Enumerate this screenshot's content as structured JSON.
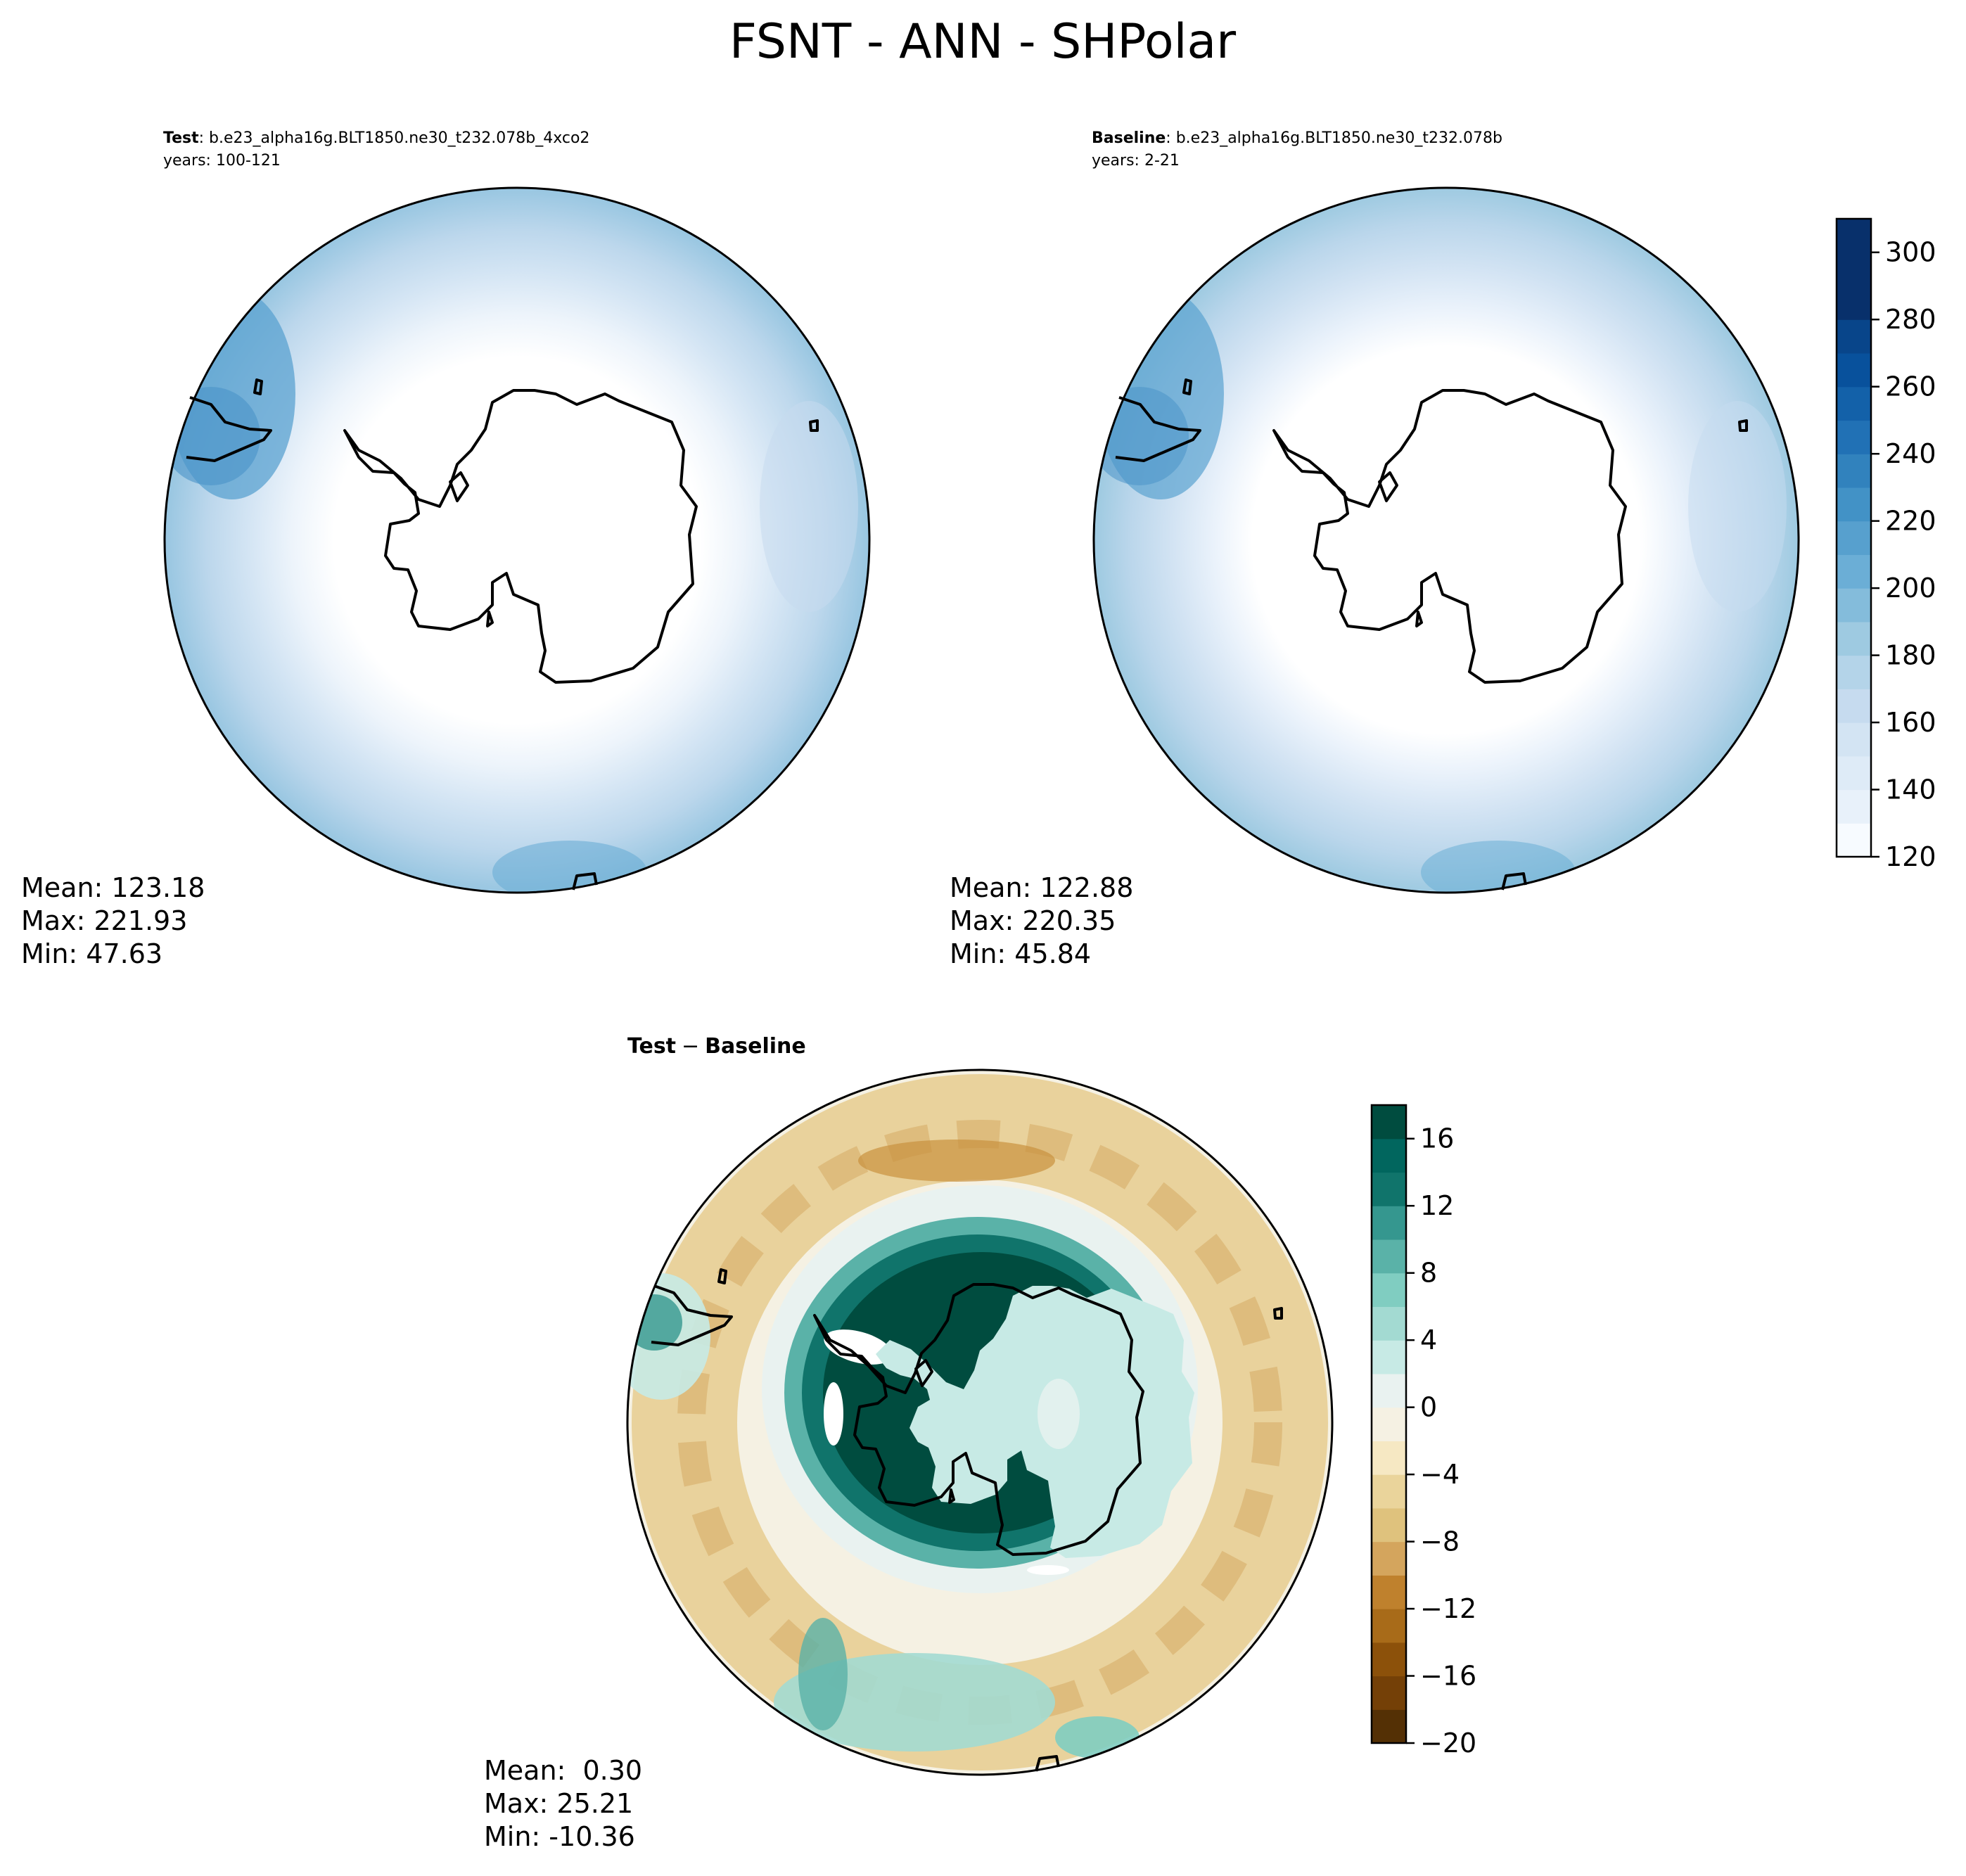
{
  "title": "FSNT - ANN - SHPolar",
  "colors": {
    "blues": [
      "#f7fbff",
      "#e8f1fa",
      "#deebf7",
      "#d3e4f3",
      "#c6dbef",
      "#b4d4e9",
      "#9ecae1",
      "#84bcdb",
      "#6baed6",
      "#57a0ce",
      "#4292c6",
      "#3182bd",
      "#2171b5",
      "#1361a9",
      "#08519c",
      "#08458a",
      "#08306b"
    ],
    "brbg": [
      "#543005",
      "#744007",
      "#8c510a",
      "#a86b19",
      "#bf812d",
      "#d4a55d",
      "#dfc27d",
      "#ead49b",
      "#f6e8c3",
      "#f5f1e3",
      "#e9f2f0",
      "#c7eae5",
      "#a3dad2",
      "#80cdc1",
      "#5ab2a8",
      "#35978f",
      "#10746b",
      "#01665e",
      "#004c3f"
    ]
  },
  "chart_data": [
    {
      "type": "heatmap",
      "projection": "south-polar-stereographic",
      "label_bold": "Test",
      "label_rest": ": b.e23_alpha16g.BLT1850.ne30_t232.078b_4xco2",
      "years": "years: 100-121",
      "stats": [
        "Mean: 123.18",
        "Max: 221.93",
        "Min: 47.63"
      ],
      "colorbar": "shared-right"
    },
    {
      "type": "heatmap",
      "projection": "south-polar-stereographic",
      "label_bold": "Baseline",
      "label_rest": ": b.e23_alpha16g.BLT1850.ne30_t232.078b",
      "years": "years: 2-21",
      "stats": [
        "Mean: 122.88",
        "Max: 220.35",
        "Min: 45.84"
      ],
      "colorbar": {
        "levels": [
          120,
          130,
          140,
          150,
          160,
          170,
          180,
          190,
          200,
          210,
          220,
          230,
          240,
          250,
          260,
          270,
          280,
          290,
          300,
          310
        ],
        "tick_values": [
          120,
          140,
          160,
          180,
          200,
          220,
          240,
          260,
          280,
          300
        ],
        "tick_labels": [
          "120",
          "140",
          "160",
          "180",
          "200",
          "220",
          "240",
          "260",
          "280",
          "300"
        ],
        "palette": "blues"
      }
    },
    {
      "type": "heatmap",
      "projection": "south-polar-stereographic",
      "label_bold": "Test",
      "label_minus": "−",
      "label_bold2": "Baseline",
      "stats": [
        "Mean:  0.30",
        "Max: 25.21",
        "Min: -10.36"
      ],
      "colorbar": {
        "levels": [
          -20,
          -18,
          -16,
          -14,
          -12,
          -10,
          -8,
          -6,
          -4,
          -2,
          0,
          2,
          4,
          6,
          8,
          10,
          12,
          14,
          16,
          18
        ],
        "tick_values": [
          -20,
          -16,
          -12,
          -8,
          -4,
          0,
          4,
          8,
          12,
          16
        ],
        "tick_labels": [
          "−20",
          "−16",
          "−12",
          "−8",
          "−4",
          "0",
          "4",
          "8",
          "12",
          "16"
        ],
        "palette": "brbg"
      }
    }
  ]
}
